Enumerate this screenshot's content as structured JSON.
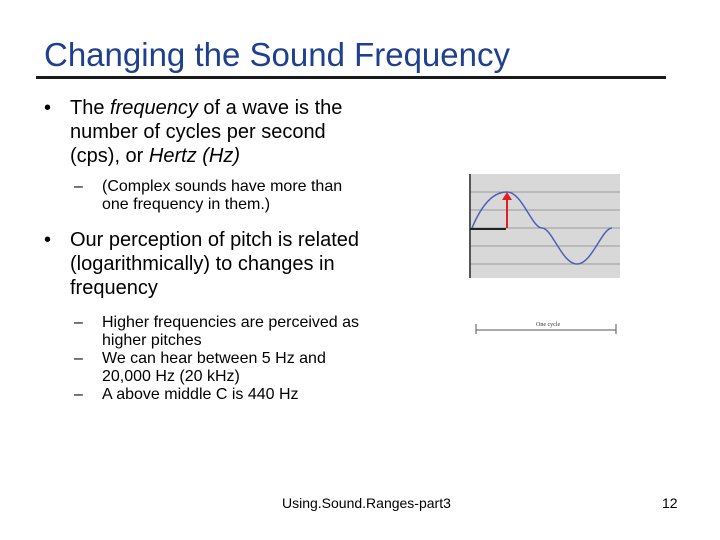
{
  "slide": {
    "title": "Changing the Sound Frequency",
    "bullets": [
      {
        "parts": [
          "The ",
          "frequency",
          " of a wave is the number of cycles per second (cps), or ",
          "Hertz (Hz)"
        ],
        "sub": [
          "(Complex sounds have more than one frequency in them.)"
        ]
      },
      {
        "text": "Our perception of pitch is related (logarithmically) to changes in frequency",
        "sub": [
          "Higher frequencies are perceived as higher pitches",
          "We can hear between 5 Hz and 20,000 Hz (20 kHz)",
          "A above middle C is 440 Hz"
        ]
      }
    ],
    "figure": {
      "cycle_label": "One cycle",
      "colors": {
        "wave": "#4f5fb8",
        "arrow": "#e02020",
        "grid_bg": "#d8d8d8",
        "grid_line": "#9a9a9a"
      }
    },
    "footer": {
      "title": "Using.Sound.Ranges-part3",
      "page": "12"
    },
    "colors": {
      "title": "#1f3f8f"
    }
  }
}
